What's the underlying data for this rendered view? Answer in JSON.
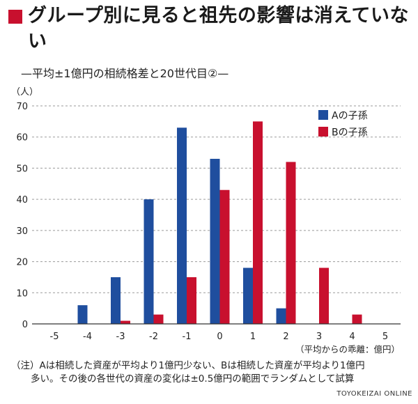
{
  "title": "グループ別に見ると祖先の影響は消えていない",
  "subtitle": "—平均±1億円の相続格差と20世代目②—",
  "note": {
    "line1": "（注）Aは相続した資産が平均より1億円少ない、Bは相続した資産が平均より1億円",
    "line2": "多い。その後の各世代の資産の変化は±0.5億円の範囲でランダムとして試算"
  },
  "footer": "TOYOKEIZAI ONLINE",
  "colors": {
    "a": "#1f4e9e",
    "b": "#c8102e",
    "accent": "#c8102e"
  },
  "chart_data": {
    "type": "bar",
    "categories": [
      "-5",
      "-4",
      "-3",
      "-2",
      "-1",
      "0",
      "1",
      "2",
      "3",
      "4",
      "5"
    ],
    "series": [
      {
        "name": "Aの子孫",
        "values": [
          0,
          6,
          15,
          40,
          63,
          53,
          18,
          5,
          0,
          0,
          0
        ]
      },
      {
        "name": "Bの子孫",
        "values": [
          0,
          0,
          1,
          3,
          15,
          43,
          65,
          52,
          18,
          3,
          0
        ]
      }
    ],
    "xlabel": "（平均からの乖離：億円）",
    "ylabel": "（人）",
    "ylim": [
      0,
      70
    ],
    "yticks": [
      0,
      10,
      20,
      30,
      40,
      50,
      60,
      70
    ],
    "grid": true,
    "legend": "top-right"
  }
}
